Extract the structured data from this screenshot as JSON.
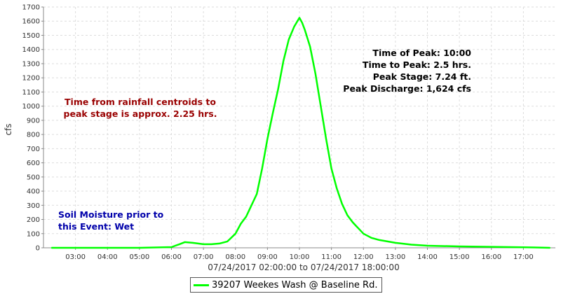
{
  "chart_data": {
    "type": "line",
    "xlabel": "07/24/2017 02:00:00 to 07/24/2017 18:00:00",
    "ylabel": "cfs",
    "xlim": [
      "02:00",
      "18:00"
    ],
    "ylim": [
      0,
      1700
    ],
    "grid": true,
    "legend_placement": "bottom-center",
    "x_ticks": [
      "03:00",
      "04:00",
      "05:00",
      "06:00",
      "07:00",
      "08:00",
      "09:00",
      "10:00",
      "11:00",
      "12:00",
      "13:00",
      "14:00",
      "15:00",
      "16:00",
      "17:00"
    ],
    "y_ticks": [
      0,
      100,
      200,
      300,
      400,
      500,
      600,
      700,
      800,
      900,
      1000,
      1100,
      1200,
      1300,
      1400,
      1500,
      1600,
      1700
    ],
    "series": [
      {
        "name": "39207 Weekes Wash @ Baseline Rd.",
        "color": "#00ff00",
        "x": [
          "02:15",
          "03:00",
          "04:00",
          "05:00",
          "06:00",
          "06:15",
          "06:25",
          "06:40",
          "07:00",
          "07:15",
          "07:30",
          "07:45",
          "08:00",
          "08:10",
          "08:20",
          "08:30",
          "08:40",
          "08:50",
          "09:00",
          "09:10",
          "09:20",
          "09:30",
          "09:40",
          "09:50",
          "10:00",
          "10:05",
          "10:10",
          "10:20",
          "10:30",
          "10:40",
          "10:50",
          "11:00",
          "11:10",
          "11:20",
          "11:30",
          "11:40",
          "11:50",
          "12:00",
          "12:15",
          "12:30",
          "12:45",
          "13:00",
          "13:30",
          "14:00",
          "15:00",
          "16:00",
          "17:00",
          "17:50"
        ],
        "y": [
          0,
          0,
          0,
          0,
          5,
          25,
          40,
          35,
          25,
          25,
          30,
          45,
          100,
          170,
          220,
          300,
          380,
          560,
          770,
          950,
          1120,
          1320,
          1470,
          1560,
          1624,
          1590,
          1540,
          1420,
          1230,
          1000,
          770,
          560,
          420,
          310,
          230,
          180,
          140,
          100,
          70,
          55,
          45,
          35,
          22,
          15,
          10,
          7,
          4,
          0
        ]
      }
    ],
    "annotations": {
      "peak_info": [
        "Time of Peak: 10:00",
        "Time to Peak: 2.5 hrs.",
        "Peak Stage: 7.24 ft.",
        "Peak Discharge: 1,624 cfs"
      ],
      "rainfall_note": [
        "Time from rainfall centroids to",
        "peak stage is approx. 2.25 hrs."
      ],
      "soil_note": [
        "Soil Moisture prior to",
        "this Event: Wet"
      ]
    },
    "colors": {
      "peak_info": "#000000",
      "rainfall_note": "#990000",
      "soil_note": "#0000aa"
    }
  }
}
